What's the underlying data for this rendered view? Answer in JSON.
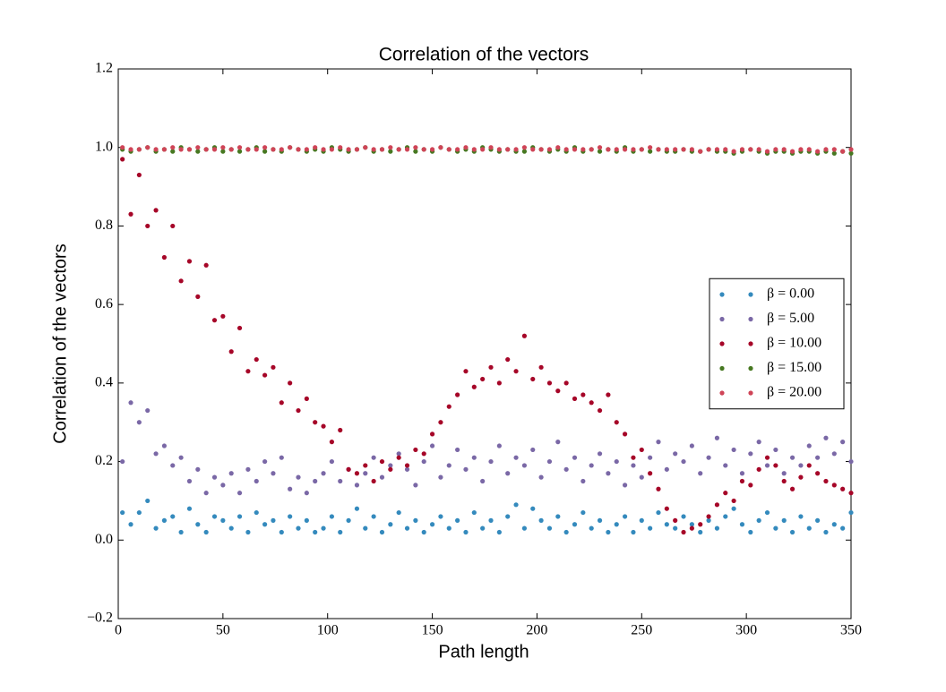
{
  "chart_data": {
    "type": "scatter",
    "title": "Correlation of the vectors",
    "xlabel": "Path length",
    "ylabel": "Correlation of the vectors",
    "x": [
      2,
      6,
      10,
      14,
      18,
      22,
      26,
      30,
      34,
      38,
      42,
      46,
      50,
      54,
      58,
      62,
      66,
      70,
      74,
      78,
      82,
      86,
      90,
      94,
      98,
      102,
      106,
      110,
      114,
      118,
      122,
      126,
      130,
      134,
      138,
      142,
      146,
      150,
      154,
      158,
      162,
      166,
      170,
      174,
      178,
      182,
      186,
      190,
      194,
      198,
      202,
      206,
      210,
      214,
      218,
      222,
      226,
      230,
      234,
      238,
      242,
      246,
      250,
      254,
      258,
      262,
      266,
      270,
      274,
      278,
      282,
      286,
      290,
      294,
      298,
      302,
      306,
      310,
      314,
      318,
      322,
      326,
      330,
      334,
      338,
      342,
      346,
      350
    ],
    "series": [
      {
        "name": "β = 0.00",
        "color": "#348abd",
        "values": [
          0.07,
          0.04,
          0.07,
          0.1,
          0.03,
          0.05,
          0.06,
          0.02,
          0.08,
          0.04,
          0.02,
          0.06,
          0.05,
          0.03,
          0.06,
          0.02,
          0.07,
          0.04,
          0.05,
          0.02,
          0.06,
          0.03,
          0.05,
          0.02,
          0.03,
          0.06,
          0.02,
          0.05,
          0.08,
          0.03,
          0.06,
          0.02,
          0.04,
          0.07,
          0.03,
          0.05,
          0.02,
          0.04,
          0.06,
          0.03,
          0.05,
          0.02,
          0.07,
          0.03,
          0.05,
          0.02,
          0.06,
          0.09,
          0.03,
          0.08,
          0.05,
          0.03,
          0.06,
          0.02,
          0.04,
          0.07,
          0.03,
          0.05,
          0.02,
          0.04,
          0.06,
          0.02,
          0.05,
          0.03,
          0.07,
          0.04,
          0.03,
          0.06,
          0.04,
          0.02,
          0.05,
          0.03,
          0.06,
          0.08,
          0.04,
          0.02,
          0.05,
          0.07,
          0.03,
          0.05,
          0.02,
          0.06,
          0.03,
          0.05,
          0.02,
          0.04,
          0.03,
          0.07
        ]
      },
      {
        "name": "β = 5.00",
        "color": "#7a68a6",
        "values": [
          0.2,
          0.35,
          0.3,
          0.33,
          0.22,
          0.24,
          0.19,
          0.21,
          0.15,
          0.18,
          0.12,
          0.16,
          0.14,
          0.17,
          0.12,
          0.18,
          0.15,
          0.2,
          0.17,
          0.21,
          0.13,
          0.16,
          0.12,
          0.15,
          0.17,
          0.2,
          0.15,
          0.18,
          0.14,
          0.17,
          0.21,
          0.16,
          0.19,
          0.22,
          0.18,
          0.14,
          0.2,
          0.24,
          0.16,
          0.19,
          0.23,
          0.18,
          0.21,
          0.15,
          0.2,
          0.24,
          0.17,
          0.21,
          0.19,
          0.23,
          0.16,
          0.2,
          0.25,
          0.18,
          0.21,
          0.15,
          0.19,
          0.22,
          0.17,
          0.2,
          0.14,
          0.19,
          0.16,
          0.21,
          0.25,
          0.18,
          0.22,
          0.2,
          0.24,
          0.17,
          0.21,
          0.26,
          0.19,
          0.23,
          0.17,
          0.22,
          0.25,
          0.19,
          0.23,
          0.17,
          0.21,
          0.19,
          0.24,
          0.21,
          0.26,
          0.22,
          0.25,
          0.2
        ]
      },
      {
        "name": "β = 10.00",
        "color": "#a60628",
        "values": [
          0.97,
          0.83,
          0.93,
          0.8,
          0.84,
          0.72,
          0.8,
          0.66,
          0.71,
          0.62,
          0.7,
          0.56,
          0.57,
          0.48,
          0.54,
          0.43,
          0.46,
          0.42,
          0.44,
          0.35,
          0.4,
          0.33,
          0.36,
          0.3,
          0.29,
          0.25,
          0.28,
          0.18,
          0.17,
          0.19,
          0.15,
          0.2,
          0.18,
          0.21,
          0.19,
          0.23,
          0.22,
          0.27,
          0.3,
          0.34,
          0.37,
          0.43,
          0.39,
          0.41,
          0.44,
          0.4,
          0.46,
          0.43,
          0.52,
          0.41,
          0.44,
          0.4,
          0.38,
          0.4,
          0.36,
          0.37,
          0.35,
          0.33,
          0.37,
          0.3,
          0.27,
          0.21,
          0.23,
          0.17,
          0.13,
          0.08,
          0.05,
          0.02,
          0.03,
          0.04,
          0.06,
          0.09,
          0.12,
          0.1,
          0.15,
          0.14,
          0.18,
          0.21,
          0.19,
          0.15,
          0.13,
          0.16,
          0.19,
          0.17,
          0.15,
          0.14,
          0.13,
          0.12
        ]
      },
      {
        "name": "β = 15.00",
        "color": "#467821",
        "values": [
          0.995,
          0.99,
          0.995,
          1.0,
          0.99,
          0.995,
          0.99,
          1.0,
          0.995,
          0.99,
          0.995,
          1.0,
          0.99,
          0.995,
          0.99,
          0.995,
          1.0,
          0.99,
          0.995,
          0.99,
          1.0,
          0.995,
          0.99,
          0.995,
          0.99,
          1.0,
          0.995,
          0.99,
          0.995,
          1.0,
          0.99,
          0.995,
          0.99,
          0.995,
          1.0,
          0.99,
          0.995,
          0.99,
          1.0,
          0.995,
          0.99,
          0.995,
          0.99,
          1.0,
          0.995,
          0.99,
          0.995,
          0.99,
          0.99,
          1.0,
          0.995,
          0.99,
          0.995,
          0.99,
          1.0,
          0.99,
          0.995,
          0.99,
          0.995,
          0.99,
          1.0,
          0.99,
          0.995,
          0.99,
          0.995,
          0.99,
          0.99,
          0.995,
          0.99,
          0.99,
          0.995,
          0.99,
          0.99,
          0.985,
          0.99,
          0.995,
          0.99,
          0.985,
          0.99,
          0.99,
          0.985,
          0.99,
          0.99,
          0.985,
          0.99,
          0.985,
          0.99,
          0.985
        ]
      },
      {
        "name": "β = 20.00",
        "color": "#cf4457",
        "values": [
          1.0,
          0.995,
          0.995,
          1.0,
          0.995,
          0.995,
          1.0,
          0.995,
          0.995,
          1.0,
          0.995,
          0.995,
          1.0,
          0.995,
          1.0,
          0.995,
          0.995,
          1.0,
          0.995,
          0.995,
          1.0,
          0.995,
          0.995,
          1.0,
          0.995,
          0.995,
          1.0,
          0.995,
          0.995,
          1.0,
          0.995,
          0.995,
          1.0,
          0.995,
          0.995,
          1.0,
          0.995,
          0.995,
          1.0,
          0.995,
          0.995,
          1.0,
          0.995,
          0.995,
          1.0,
          0.995,
          0.995,
          0.995,
          1.0,
          0.995,
          0.995,
          0.995,
          1.0,
          0.995,
          0.995,
          0.995,
          0.995,
          1.0,
          0.995,
          0.995,
          0.995,
          0.995,
          0.995,
          1.0,
          0.995,
          0.995,
          0.995,
          0.995,
          0.995,
          0.99,
          0.995,
          0.995,
          0.995,
          0.99,
          0.995,
          0.995,
          0.995,
          0.99,
          0.995,
          0.995,
          0.99,
          0.995,
          0.995,
          0.99,
          0.995,
          0.995,
          0.99,
          0.995
        ]
      }
    ],
    "xlim": [
      0,
      350
    ],
    "xticks": [
      0,
      50,
      100,
      150,
      200,
      250,
      300,
      350
    ],
    "ylim": [
      -0.2,
      1.2
    ],
    "yticks": [
      {
        "value": -0.2,
        "label": "−0.2"
      },
      {
        "value": 0,
        "label": "0.0"
      },
      0.2,
      0.4,
      0.6,
      0.8,
      {
        "value": 1,
        "label": "1.0"
      },
      1.2
    ],
    "grid": false,
    "legend": "center right"
  }
}
